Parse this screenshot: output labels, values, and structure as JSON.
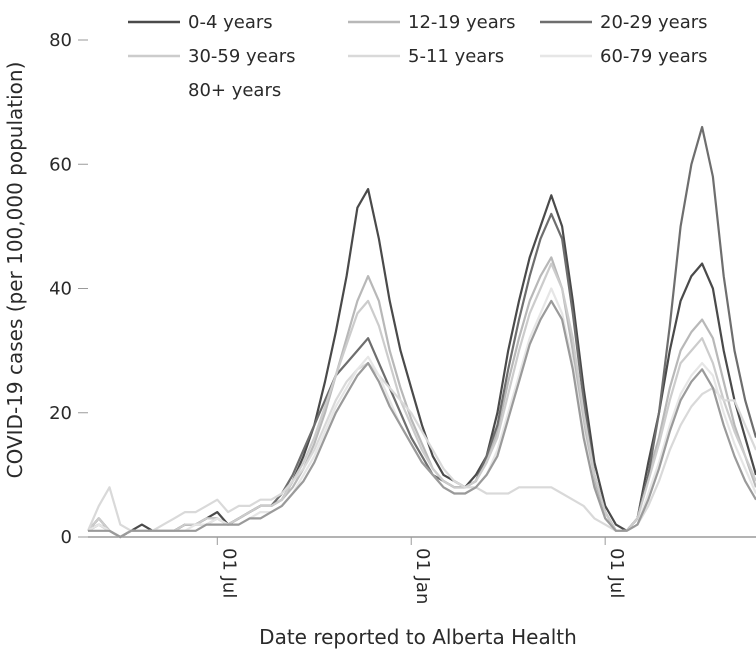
{
  "chart_data": {
    "type": "line",
    "xlabel": "Date reported to Alberta Health",
    "ylabel": "COVID-19 cases (per 100,000 population)",
    "x_ticks": [
      "01 Jul",
      "01 Jan",
      "01 Jul"
    ],
    "x_tick_index": [
      12,
      30,
      48
    ],
    "ylim": [
      0,
      80
    ],
    "y_ticks": [
      0,
      20,
      40,
      60,
      80
    ],
    "x_range": [
      0,
      62
    ],
    "grid": false,
    "legend_position": "top",
    "series": [
      {
        "name": "0-4 years",
        "color": "#4a4a4a",
        "values": [
          1,
          3,
          1,
          0,
          1,
          2,
          1,
          1,
          1,
          2,
          2,
          3,
          4,
          2,
          3,
          4,
          5,
          5,
          6,
          9,
          13,
          18,
          25,
          33,
          42,
          53,
          56,
          48,
          38,
          30,
          24,
          18,
          13,
          10,
          9,
          8,
          10,
          13,
          20,
          30,
          38,
          45,
          50,
          55,
          50,
          38,
          24,
          12,
          5,
          2,
          1,
          3,
          12,
          20,
          30,
          38,
          42,
          44,
          40,
          30,
          22,
          16,
          10
        ]
      },
      {
        "name": "12-19 years",
        "color": "#b8b8b8",
        "values": [
          1,
          2,
          1,
          0,
          1,
          1,
          1,
          1,
          1,
          2,
          2,
          2,
          3,
          2,
          3,
          4,
          5,
          5,
          6,
          8,
          11,
          15,
          20,
          26,
          32,
          38,
          42,
          38,
          30,
          24,
          19,
          15,
          11,
          9,
          8,
          8,
          9,
          12,
          17,
          25,
          32,
          38,
          42,
          45,
          40,
          30,
          18,
          9,
          4,
          1,
          1,
          3,
          10,
          16,
          24,
          30,
          33,
          35,
          32,
          25,
          18,
          13,
          8
        ]
      },
      {
        "name": "20-29 years",
        "color": "#6e6e6e",
        "values": [
          1,
          2,
          1,
          0,
          1,
          1,
          1,
          1,
          1,
          2,
          2,
          3,
          3,
          2,
          3,
          4,
          5,
          5,
          7,
          10,
          14,
          18,
          22,
          26,
          28,
          30,
          32,
          28,
          24,
          20,
          16,
          13,
          10,
          9,
          8,
          8,
          9,
          13,
          18,
          27,
          35,
          42,
          48,
          52,
          48,
          36,
          22,
          10,
          4,
          1,
          1,
          3,
          10,
          20,
          34,
          50,
          60,
          66,
          58,
          42,
          30,
          22,
          16
        ]
      },
      {
        "name": "30-59 years",
        "color": "#cccccc",
        "values": [
          1,
          3,
          1,
          0,
          1,
          1,
          1,
          1,
          1,
          2,
          2,
          3,
          3,
          2,
          3,
          4,
          5,
          5,
          6,
          9,
          12,
          16,
          21,
          26,
          31,
          36,
          38,
          34,
          28,
          22,
          18,
          14,
          11,
          9,
          8,
          8,
          9,
          12,
          16,
          23,
          30,
          36,
          40,
          44,
          40,
          32,
          20,
          10,
          4,
          1,
          1,
          3,
          9,
          15,
          22,
          28,
          30,
          32,
          28,
          22,
          17,
          13,
          9
        ]
      },
      {
        "name": "5-11 years",
        "color": "#d9d9d9",
        "values": [
          1,
          5,
          8,
          2,
          1,
          1,
          1,
          2,
          3,
          4,
          4,
          5,
          6,
          4,
          5,
          5,
          6,
          6,
          7,
          9,
          11,
          14,
          18,
          22,
          25,
          27,
          28,
          26,
          24,
          22,
          20,
          17,
          14,
          11,
          9,
          8,
          8,
          7,
          7,
          7,
          8,
          8,
          8,
          8,
          7,
          6,
          5,
          3,
          2,
          1,
          1,
          2,
          5,
          9,
          14,
          18,
          21,
          23,
          24,
          22,
          22,
          18,
          14
        ]
      },
      {
        "name": "60-79 years",
        "color": "#e6e6e6",
        "values": [
          1,
          2,
          1,
          0,
          1,
          1,
          1,
          1,
          1,
          1,
          2,
          2,
          3,
          2,
          2,
          3,
          4,
          4,
          5,
          7,
          10,
          13,
          17,
          21,
          24,
          27,
          29,
          26,
          22,
          18,
          15,
          12,
          10,
          8,
          7,
          7,
          8,
          10,
          14,
          20,
          26,
          32,
          36,
          40,
          36,
          28,
          17,
          8,
          3,
          1,
          1,
          2,
          7,
          12,
          18,
          23,
          26,
          28,
          26,
          20,
          15,
          11,
          7
        ]
      },
      {
        "name": "80+ years",
        "color": "#9a9a9a",
        "values": [
          1,
          1,
          1,
          0,
          1,
          1,
          1,
          1,
          1,
          1,
          1,
          2,
          2,
          2,
          2,
          3,
          3,
          4,
          5,
          7,
          9,
          12,
          16,
          20,
          23,
          26,
          28,
          25,
          21,
          18,
          15,
          12,
          10,
          8,
          7,
          7,
          8,
          10,
          13,
          19,
          25,
          31,
          35,
          38,
          35,
          27,
          16,
          8,
          3,
          1,
          1,
          2,
          6,
          11,
          17,
          22,
          25,
          27,
          24,
          18,
          13,
          9,
          6
        ]
      }
    ]
  }
}
